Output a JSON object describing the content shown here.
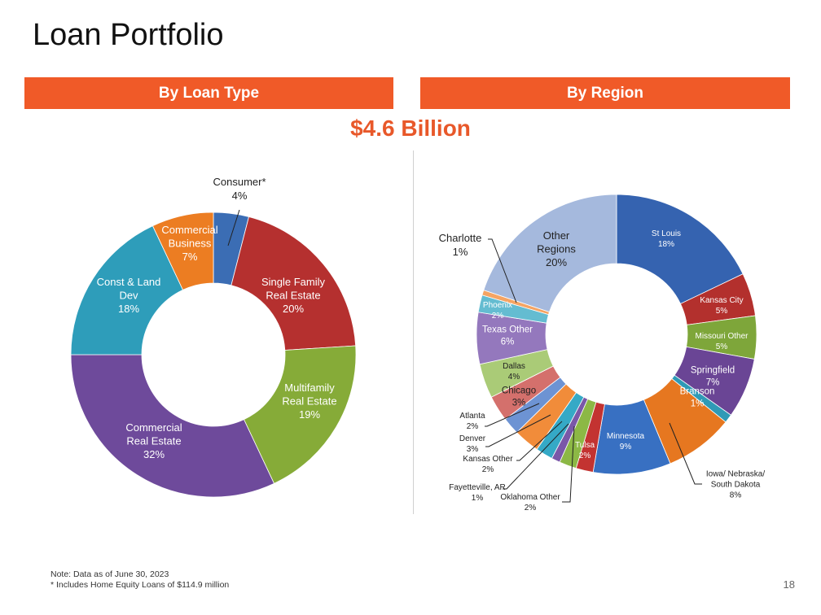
{
  "page": {
    "title": "Loan Portfolio",
    "left_header": "By Loan Type",
    "right_header": "By Region",
    "total": "$4.6 Billion",
    "notes": [
      "Note: Data as of June 30, 2023",
      "* Includes Home Equity Loans of $114.9 million"
    ],
    "page_number": "18"
  },
  "chart_data": [
    {
      "type": "pie",
      "title": "By Loan Type",
      "slices": [
        {
          "label": "Consumer*",
          "value": 4,
          "color": "#3b6db4"
        },
        {
          "label": "Single Family Real Estate",
          "value": 20,
          "color": "#b5302f"
        },
        {
          "label": "Multifamily Real Estate",
          "value": 19,
          "color": "#86ab38"
        },
        {
          "label": "Commercial Real Estate",
          "value": 32,
          "color": "#6e4a9b"
        },
        {
          "label": "Const & Land Dev",
          "value": 18,
          "color": "#2e9dba"
        },
        {
          "label": "Commercial Business",
          "value": 7,
          "color": "#ec7d22"
        }
      ]
    },
    {
      "type": "pie",
      "title": "By Region",
      "slices": [
        {
          "label": "St Louis",
          "value": 18,
          "color": "#3563b0"
        },
        {
          "label": "Kansas City",
          "value": 5,
          "color": "#b3302d"
        },
        {
          "label": "Missouri Other",
          "value": 5,
          "color": "#7ea63a"
        },
        {
          "label": "Springfield",
          "value": 7,
          "color": "#6a4595"
        },
        {
          "label": "Branson",
          "value": 1,
          "color": "#2f9ab6"
        },
        {
          "label": "Iowa/ Nebraska/ South Dakota",
          "value": 8,
          "color": "#e67720"
        },
        {
          "label": "Minnesota",
          "value": 9,
          "color": "#3870c2"
        },
        {
          "label": "Tulsa",
          "value": 2,
          "color": "#c33331"
        },
        {
          "label": "Oklahoma Other",
          "value": 2,
          "color": "#8cb845"
        },
        {
          "label": "Fayetteville, AR",
          "value": 1,
          "color": "#7a58a8"
        },
        {
          "label": "Kansas Other",
          "value": 2,
          "color": "#35a9c6"
        },
        {
          "label": "Denver",
          "value": 3,
          "color": "#f18c3a"
        },
        {
          "label": "Atlanta",
          "value": 2,
          "color": "#6d93d3"
        },
        {
          "label": "Chicago",
          "value": 3,
          "color": "#d4706c"
        },
        {
          "label": "Dallas",
          "value": 4,
          "color": "#aacb77"
        },
        {
          "label": "Texas Other",
          "value": 6,
          "color": "#9478bd"
        },
        {
          "label": "Phoenix",
          "value": 2,
          "color": "#64bcd1"
        },
        {
          "label": "Charlotte",
          "value": 0.6,
          "color": "#f5a463"
        },
        {
          "label": "Other Regions",
          "value": 20,
          "color": "#a5b9dd"
        }
      ]
    }
  ]
}
